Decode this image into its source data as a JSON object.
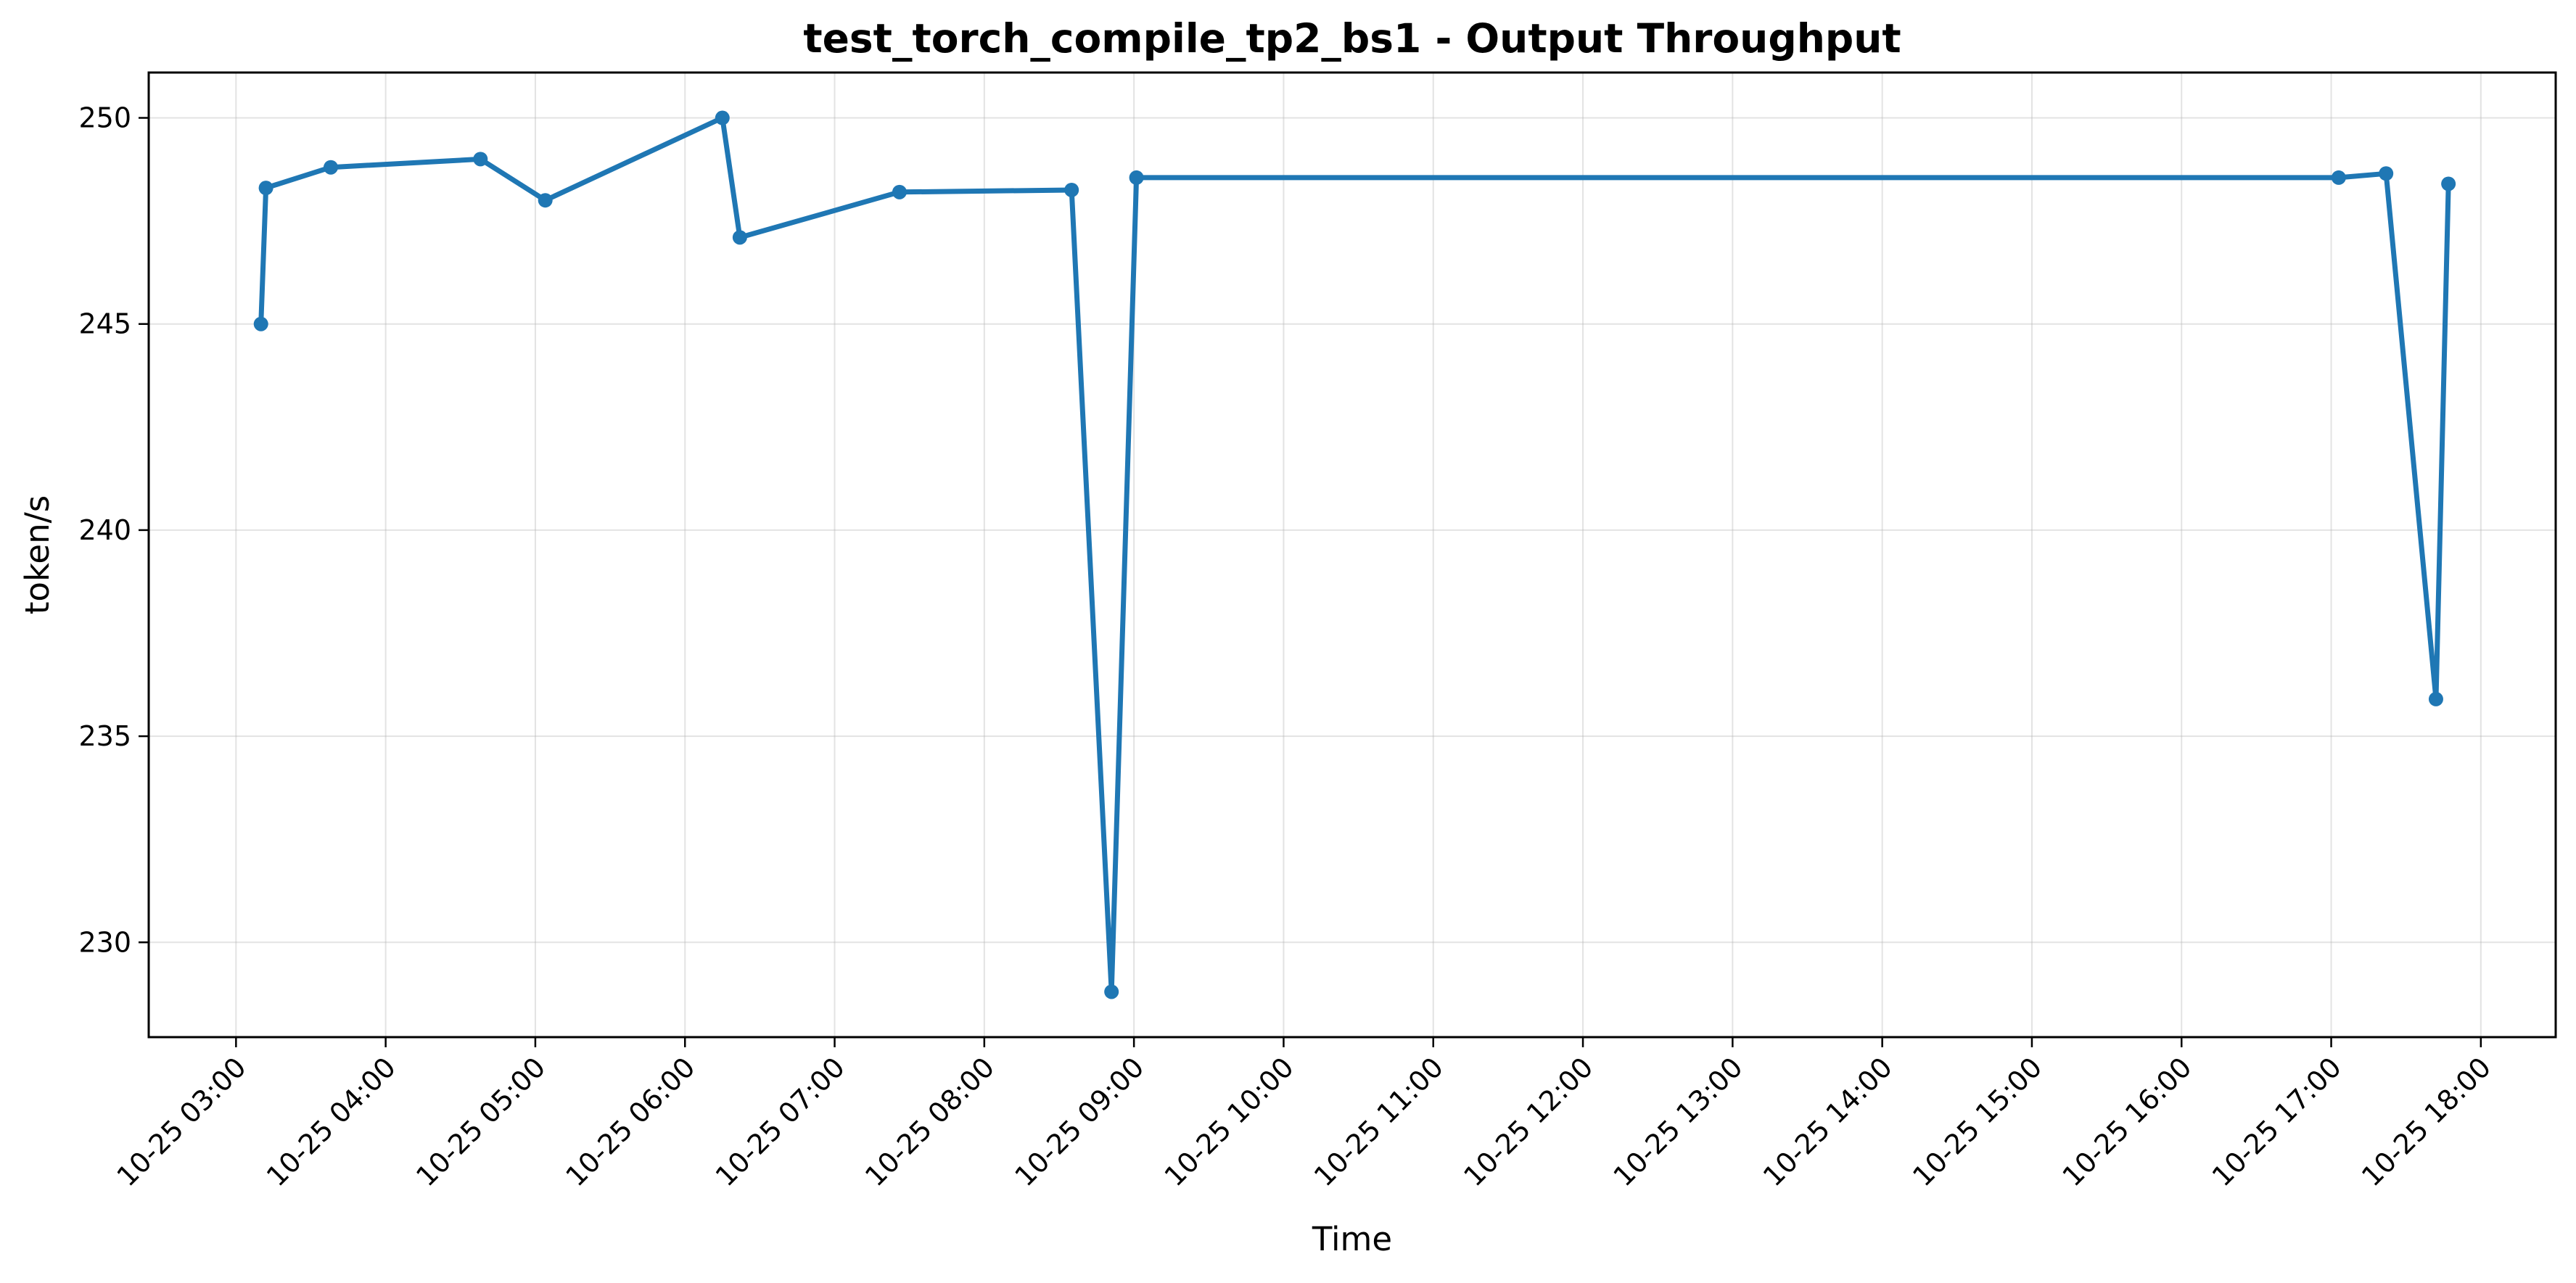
{
  "chart_data": {
    "type": "line",
    "title": "test_torch_compile_tp2_bs1 - Output Throughput",
    "xlabel": "Time",
    "ylabel": "token/s",
    "x_range": [
      "10-25 02:25",
      "10-25 18:30"
    ],
    "ylim": [
      227.7,
      251.1
    ],
    "grid": true,
    "legend": "none",
    "colors": {
      "series": "#1f77b4"
    },
    "x_ticks": [
      "10-25 03:00",
      "10-25 04:00",
      "10-25 05:00",
      "10-25 06:00",
      "10-25 07:00",
      "10-25 08:00",
      "10-25 09:00",
      "10-25 10:00",
      "10-25 11:00",
      "10-25 12:00",
      "10-25 13:00",
      "10-25 14:00",
      "10-25 15:00",
      "10-25 16:00",
      "10-25 17:00",
      "10-25 18:00"
    ],
    "y_ticks": [
      230,
      235,
      240,
      245,
      250
    ],
    "series": [
      {
        "points": [
          {
            "x": "10-25 03:10",
            "y": 245.0
          },
          {
            "x": "10-25 03:12",
            "y": 248.3
          },
          {
            "x": "10-25 03:38",
            "y": 248.8
          },
          {
            "x": "10-25 04:38",
            "y": 249.0
          },
          {
            "x": "10-25 05:04",
            "y": 248.0
          },
          {
            "x": "10-25 06:15",
            "y": 250.0
          },
          {
            "x": "10-25 06:22",
            "y": 247.1
          },
          {
            "x": "10-25 07:26",
            "y": 248.2
          },
          {
            "x": "10-25 08:35",
            "y": 248.25
          },
          {
            "x": "10-25 08:51",
            "y": 228.8
          },
          {
            "x": "10-25 09:01",
            "y": 248.55
          },
          {
            "x": "10-25 17:03",
            "y": 248.55
          },
          {
            "x": "10-25 17:22",
            "y": 248.65
          },
          {
            "x": "10-25 17:42",
            "y": 235.9
          },
          {
            "x": "10-25 17:47",
            "y": 248.4
          }
        ]
      }
    ]
  }
}
